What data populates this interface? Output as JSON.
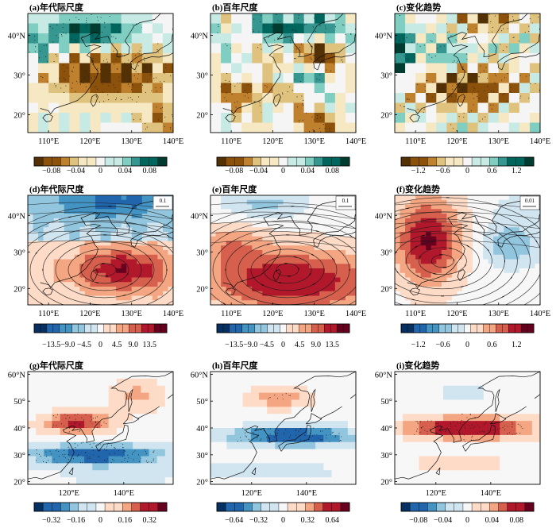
{
  "chart_data": [
    {
      "id": "a",
      "type": "heatmap",
      "title": "(a)年代际尺度",
      "tick_labels_y": [
        "40°N",
        "30°",
        "20°"
      ],
      "tick_labels_x": [
        "110°E",
        "120°E",
        "130°E",
        "140°E"
      ],
      "colorbar": {
        "scheme": "brbg",
        "ticks": [
          "−0.08",
          "−0.04",
          "0",
          "0.04",
          "0.08"
        ],
        "range": [
          -0.1,
          0.1
        ]
      },
      "pattern": "brbg_decadal"
    },
    {
      "id": "b",
      "type": "heatmap",
      "title": "(b)百年尺度",
      "tick_labels_y": [
        "40°N",
        "30°",
        "20°"
      ],
      "tick_labels_x": [
        "110°E",
        "120°E",
        "130°E",
        "140°E"
      ],
      "colorbar": {
        "scheme": "brbg",
        "ticks": [
          "−0.08",
          "−0.04",
          "0",
          "0.04",
          "0.08"
        ],
        "range": [
          -0.1,
          0.1
        ]
      },
      "pattern": "brbg_century"
    },
    {
      "id": "c",
      "type": "heatmap",
      "title": "(c)变化趋势",
      "tick_labels_y": [
        "40°N",
        "30°",
        "20°"
      ],
      "tick_labels_x": [
        "110°E",
        "120°E",
        "130°E",
        "140°E"
      ],
      "colorbar": {
        "scheme": "brbg",
        "ticks": [
          "−1.2",
          "−0.6",
          "0",
          "0.6",
          "1.2"
        ],
        "range": [
          -1.5,
          1.5
        ]
      },
      "pattern": "brbg_trend"
    },
    {
      "id": "d",
      "type": "heatmap",
      "title": "(d)年代际尺度",
      "vector_ref": "0.1",
      "tick_labels_y": [
        "40°N",
        "30°",
        "20°"
      ],
      "tick_labels_x": [
        "110°E",
        "120°E",
        "130°E",
        "140°E"
      ],
      "colorbar": {
        "scheme": "rdbu",
        "ticks": [
          "−13.5",
          "−9.0",
          "−4.5",
          "0",
          "4.5",
          "9.0",
          "13.5"
        ],
        "range": [
          -16,
          16
        ]
      },
      "pattern": "h_decadal"
    },
    {
      "id": "e",
      "type": "heatmap",
      "title": "(e)百年尺度",
      "vector_ref": "0.1",
      "tick_labels_y": [
        "40°N",
        "30°",
        "20°"
      ],
      "tick_labels_x": [
        "110°E",
        "120°E",
        "130°E",
        "140°E"
      ],
      "colorbar": {
        "scheme": "rdbu",
        "ticks": [
          "−13.5",
          "−9.0",
          "−4.5",
          "0",
          "4.5",
          "9.0",
          "13.5"
        ],
        "range": [
          -16,
          16
        ]
      },
      "pattern": "h_century"
    },
    {
      "id": "f",
      "type": "heatmap",
      "title": "(f)变化趋势",
      "vector_ref": "0.01",
      "tick_labels_y": [
        "40°N",
        "30°",
        "20°"
      ],
      "tick_labels_x": [
        "110°E",
        "120°E",
        "130°E",
        "140°E"
      ],
      "colorbar": {
        "scheme": "rdbu",
        "ticks": [
          "−1.2",
          "−0.6",
          "0",
          "0.6",
          "1.2"
        ],
        "range": [
          -1.5,
          1.5
        ]
      },
      "pattern": "h_trend"
    },
    {
      "id": "g",
      "type": "heatmap",
      "title": "(g)年代际尺度",
      "tick_labels_y": [
        "60°N",
        "50°",
        "40°",
        "30°",
        "20°"
      ],
      "tick_labels_x": [
        "120°E",
        "140°E"
      ],
      "colorbar": {
        "scheme": "rdbu",
        "ticks": [
          "−0.32",
          "−0.16",
          "0",
          "0.16",
          "0.32"
        ],
        "range": [
          -0.4,
          0.4
        ]
      },
      "pattern": "jet_decadal"
    },
    {
      "id": "h",
      "type": "heatmap",
      "title": "(h)百年尺度",
      "tick_labels_y": [
        "60°N",
        "50°",
        "40°",
        "30°",
        "20°"
      ],
      "tick_labels_x": [
        "120°E",
        "140°E"
      ],
      "colorbar": {
        "scheme": "rdbu",
        "ticks": [
          "−0.64",
          "−0.32",
          "0",
          "0.32",
          "0.64"
        ],
        "range": [
          -0.8,
          0.8
        ]
      },
      "pattern": "jet_century"
    },
    {
      "id": "i",
      "type": "heatmap",
      "title": "(i)变化趋势",
      "tick_labels_y": [
        "60°N",
        "50°",
        "40°",
        "30°",
        "20°"
      ],
      "tick_labels_x": [
        "120°E",
        "140°E"
      ],
      "colorbar": {
        "scheme": "rdbu",
        "ticks": [
          "−0.08",
          "−0.04",
          "0",
          "0.04",
          "0.08"
        ],
        "range": [
          -0.1,
          0.1
        ]
      },
      "pattern": "jet_trend"
    }
  ]
}
